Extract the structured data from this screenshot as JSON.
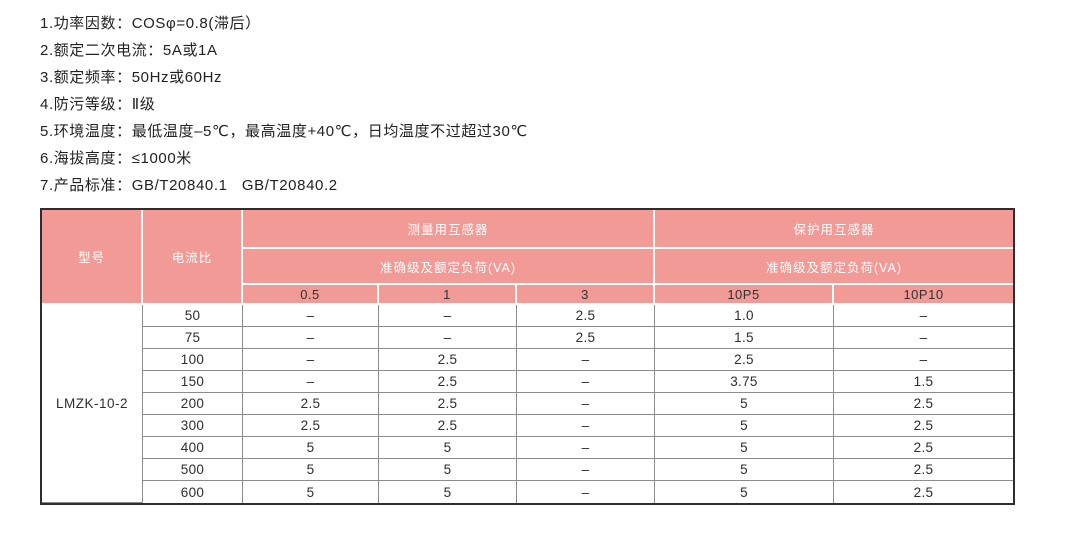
{
  "spec_list": {
    "items": [
      "1.功率因数：COSφ=0.8(滞后）",
      "2.额定二次电流：5A或1A",
      "3.额定频率：50Hz或60Hz",
      "4.防污等级：Ⅱ级",
      "5.环境温度：最低温度–5℃，最高温度+40℃，日均温度不过超过30℃",
      "6.海拔高度：≤1000米",
      "7.产品标准：GB/T20840.1   GB/T20840.2"
    ]
  },
  "table": {
    "colors": {
      "header_bg": "#F19A96",
      "header_text": "#FFFFFF",
      "subheader_text": "#333333",
      "body_text": "#2E2E2E",
      "outer_border": "#2E2E2E",
      "grid_line": "#8C8C8C",
      "divider_white": "#FFFFFF"
    },
    "header": {
      "model_label": "型号",
      "ratio_label": "电流比",
      "measuring_group_label": "测量用互感器",
      "protection_group_label": "保护用互感器",
      "measuring_accuracy_label": "准确级及额定负荷(VA)",
      "protection_accuracy_label": "准确级及额定负荷(VA)",
      "sub_columns": [
        "0.5",
        "1",
        "3",
        "10P5",
        "10P10"
      ]
    },
    "model_value": "LMZK-10-2",
    "rows": [
      {
        "ratio": "50",
        "values": [
          "–",
          "–",
          "2.5",
          "1.0",
          "–"
        ]
      },
      {
        "ratio": "75",
        "values": [
          "–",
          "–",
          "2.5",
          "1.5",
          "–"
        ]
      },
      {
        "ratio": "100",
        "values": [
          "–",
          "2.5",
          "–",
          "2.5",
          "–"
        ]
      },
      {
        "ratio": "150",
        "values": [
          "–",
          "2.5",
          "–",
          "3.75",
          "1.5"
        ]
      },
      {
        "ratio": "200",
        "values": [
          "2.5",
          "2.5",
          "–",
          "5",
          "2.5"
        ]
      },
      {
        "ratio": "300",
        "values": [
          "2.5",
          "2.5",
          "–",
          "5",
          "2.5"
        ]
      },
      {
        "ratio": "400",
        "values": [
          "5",
          "5",
          "–",
          "5",
          "2.5"
        ]
      },
      {
        "ratio": "500",
        "values": [
          "5",
          "5",
          "–",
          "5",
          "2.5"
        ]
      },
      {
        "ratio": "600",
        "values": [
          "5",
          "5",
          "–",
          "5",
          "2.5"
        ]
      }
    ]
  }
}
